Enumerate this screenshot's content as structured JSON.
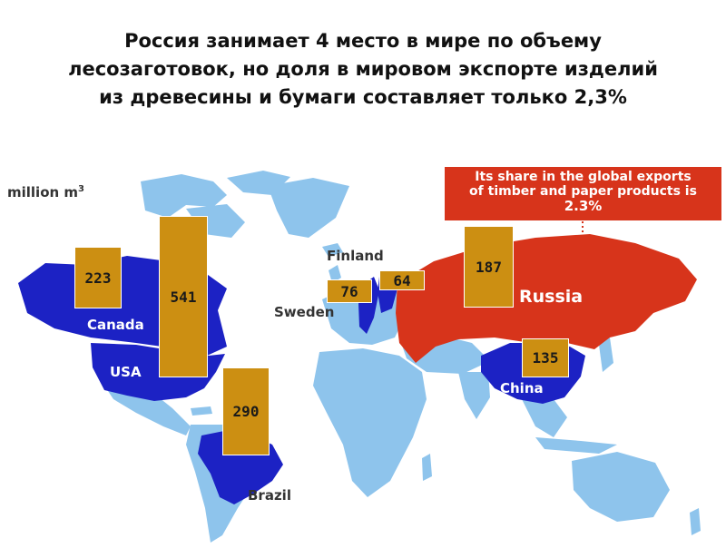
{
  "title_lines": [
    "Россия занимает 4 место в мире по объему",
    "лесозаготовок, но доля в мировом экспорте изделий",
    "из древесины и бумаги составляет только 2,3%"
  ],
  "unit": "million m",
  "unit_superscript": "3",
  "callout": {
    "line1": "Its share in the global exports",
    "line2": "of timber and paper products is",
    "value": "2.3%"
  },
  "countries": [
    {
      "name": "Canada",
      "value": "223"
    },
    {
      "name": "USA",
      "value": "541"
    },
    {
      "name": "Brazil",
      "value": "290"
    },
    {
      "name": "Sweden",
      "value": "76"
    },
    {
      "name": "Finland",
      "value": "64"
    },
    {
      "name": "Russia",
      "value": "187"
    },
    {
      "name": "China",
      "value": "135"
    }
  ],
  "colors": {
    "land": "#8ec4ec",
    "highlight": "#1c22c4",
    "russia": "#d7341b",
    "bar": "#cc8f12"
  }
}
